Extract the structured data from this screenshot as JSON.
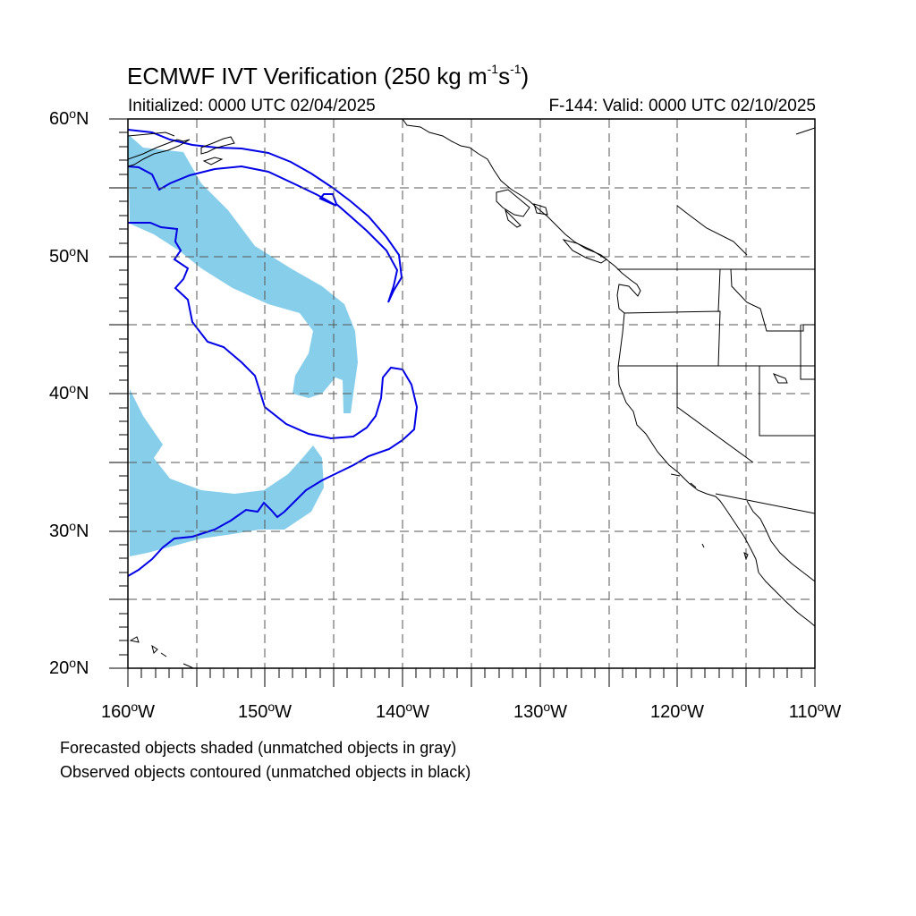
{
  "title": {
    "main_prefix": "ECMWF IVT Verification (250 kg m",
    "sup1": "-1",
    "mid": "s",
    "sup2": "-1",
    "suffix": ")"
  },
  "init_text": "Initialized: 0000 UTC 02/04/2025",
  "valid_text": "F-144: Valid: 0000 UTC 02/10/2025",
  "lat_labels": [
    {
      "num": "60",
      "hemi": "N"
    },
    {
      "num": "50",
      "hemi": "N"
    },
    {
      "num": "40",
      "hemi": "N"
    },
    {
      "num": "30",
      "hemi": "N"
    },
    {
      "num": "20",
      "hemi": "N"
    }
  ],
  "lon_labels": [
    {
      "num": "160",
      "hemi": "W"
    },
    {
      "num": "150",
      "hemi": "W"
    },
    {
      "num": "140",
      "hemi": "W"
    },
    {
      "num": "130",
      "hemi": "W"
    },
    {
      "num": "120",
      "hemi": "W"
    },
    {
      "num": "110",
      "hemi": "W"
    }
  ],
  "footnotes": [
    "Forecasted objects shaded (unmatched objects in gray)",
    "Observed objects contoured (unmatched objects in black)"
  ],
  "colors": {
    "forecast_fill": "#87ceeb",
    "observed_contour": "#0000e6",
    "coastline": "#000000",
    "grid": "#555555"
  }
}
